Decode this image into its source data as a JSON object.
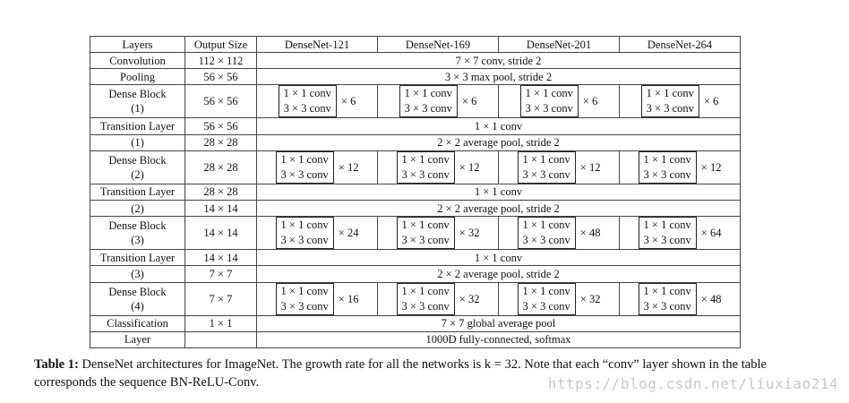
{
  "headers": [
    "Layers",
    "Output Size",
    "DenseNet-121",
    "DenseNet-169",
    "DenseNet-201",
    "DenseNet-264"
  ],
  "conv_text": "1 × 1 conv",
  "conv3_text": "3 × 3 conv",
  "rows": [
    {
      "kind": "span",
      "layer": "Convolution",
      "size": "112 × 112",
      "text": "7 × 7 conv, stride 2"
    },
    {
      "kind": "span",
      "layer": "Pooling",
      "size": "56 × 56",
      "text": "3 × 3 max pool, stride 2"
    },
    {
      "kind": "block",
      "layer": "Dense Block",
      "layer_index": "(1)",
      "size": "56 × 56",
      "mults": [
        "× 6",
        "× 6",
        "× 6",
        "× 6"
      ]
    },
    {
      "kind": "trans",
      "layer": "Transition Layer",
      "layer_index": "(1)",
      "size_a": "56 × 56",
      "text_a": "1 × 1 conv",
      "size_b": "28 × 28",
      "text_b": "2 × 2 average pool, stride 2"
    },
    {
      "kind": "block",
      "layer": "Dense Block",
      "layer_index": "(2)",
      "size": "28 × 28",
      "mults": [
        "× 12",
        "× 12",
        "× 12",
        "× 12"
      ]
    },
    {
      "kind": "trans",
      "layer": "Transition Layer",
      "layer_index": "(2)",
      "size_a": "28 × 28",
      "text_a": "1 × 1 conv",
      "size_b": "14 × 14",
      "text_b": "2 × 2 average pool, stride 2"
    },
    {
      "kind": "block",
      "layer": "Dense Block",
      "layer_index": "(3)",
      "size": "14 × 14",
      "mults": [
        "× 24",
        "× 32",
        "× 48",
        "× 64"
      ]
    },
    {
      "kind": "trans",
      "layer": "Transition Layer",
      "layer_index": "(3)",
      "size_a": "14 × 14",
      "text_a": "1 × 1 conv",
      "size_b": "7 × 7",
      "text_b": "2 × 2 average pool, stride 2"
    },
    {
      "kind": "block",
      "layer": "Dense Block",
      "layer_index": "(4)",
      "size": "7 × 7",
      "mults": [
        "× 16",
        "× 32",
        "× 32",
        "× 48"
      ]
    },
    {
      "kind": "trans",
      "layer": "Classification",
      "layer_index": "Layer",
      "size_a": "1 × 1",
      "text_a": "7 × 7 global average pool",
      "size_b": "",
      "text_b": "1000D fully-connected, softmax"
    }
  ],
  "caption": {
    "label": "Table 1:",
    "text": " DenseNet architectures for ImageNet. The growth rate for all the networks is k = 32. Note that each “conv” layer shown in the table corresponds the sequence BN-ReLU-Conv."
  },
  "watermark": "https://blog.csdn.net/liuxiao214"
}
